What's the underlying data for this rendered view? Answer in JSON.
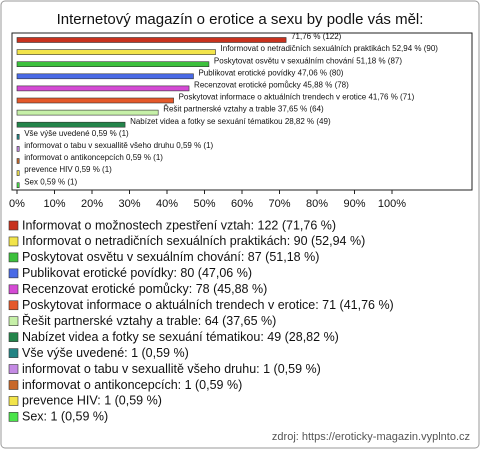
{
  "chart_data": {
    "type": "bar",
    "title": "Internetový magazín o erotice a sexu by podle vás měl:",
    "categories": [
      "Informovat o možnostech zpestření vztah: 122 (71,76 %)",
      "Informovat o netradičních sexuálních praktikách: 90 (52,94 %)",
      "Poskytovat osvětu v sexuálním chování: 87 (51,18 %)",
      "Publikovat erotické povídky: 80 (47,06 %)",
      "Recenzovat erotické pomůcky: 78 (45,88 %)",
      "Poskytovat informace o aktuálních trendech v erotice: 71 (41,76 %)",
      "Řešit partnerské vztahy a trable: 64 (37,65 %)",
      "Nabízet videa a fotky se sexuání tématikou: 49 (28,82 %)",
      "Vše výše uvedené: 1 (0,59 %)",
      "informovat o tabu v sexuallitě všeho druhu: 1 (0,59 %)",
      "informovat o antikoncepcích: 1 (0,59 %)",
      "prevence HIV: 1 (0,59 %)",
      "Sex: 1 (0,59 %)"
    ],
    "values": [
      71.76,
      52.94,
      51.18,
      47.06,
      45.88,
      41.76,
      37.65,
      28.82,
      0.59,
      0.59,
      0.59,
      0.59,
      0.59
    ],
    "value_labels": [
      "71,76 % (122)",
      "Informovat o netradičních sexuálních praktikách 52,94 % (90)",
      "Poskytovat osvětu v sexuálním chování 51,18 % (87)",
      "Publikovat erotické povídky 47,06 % (80)",
      "Recenzovat erotické pomůcky 45,88 % (78)",
      "Poskytovat informace o aktuálních trendech v erotice 41,76 % (71)",
      "Řešit partnerské vztahy a trable 37,65 % (64)",
      "Nabízet videa a fotky se sexuání tématikou 28,82 % (49)",
      "Vše výše uvedené 0,59 % (1)",
      "informovat o tabu v sexuallitě všeho druhu 0,59 % (1)",
      "informovat o antikoncepcích 0,59 % (1)",
      "prevence HIV 0,59 % (1)",
      "Sex 0,59 % (1)"
    ],
    "colors": [
      "#c8321e",
      "#f2e44a",
      "#3cc03c",
      "#4a6ae6",
      "#d44ad4",
      "#e4582a",
      "#c6f0a8",
      "#23844a",
      "#238484",
      "#c48ae4",
      "#c8682a",
      "#f2e44a",
      "#4ae44a"
    ],
    "xlim": [
      0,
      100
    ],
    "xticks": [
      {
        "value": 0,
        "label": "0%"
      },
      {
        "value": 10,
        "label": "10%"
      },
      {
        "value": 20,
        "label": "20%"
      },
      {
        "value": 30,
        "label": "30%"
      },
      {
        "value": 40,
        "label": "40%"
      },
      {
        "value": 50,
        "label": "50%"
      },
      {
        "value": 60,
        "label": "60%"
      },
      {
        "value": 70,
        "label": "70%"
      },
      {
        "value": 80,
        "label": "80%"
      },
      {
        "value": 90,
        "label": "90%"
      },
      {
        "value": 100,
        "label": "100%"
      }
    ],
    "source": "zdroj: https://eroticky-magazin.vyplnto.cz"
  }
}
